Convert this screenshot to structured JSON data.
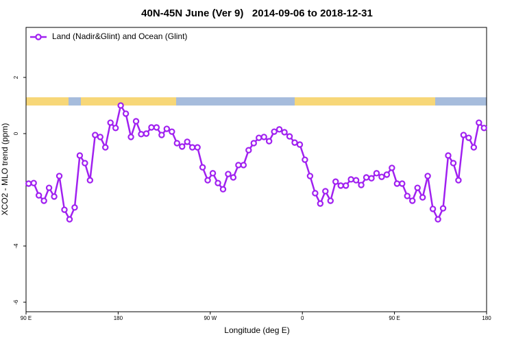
{
  "chart_data": {
    "type": "line",
    "title": "40N-45N June (Ver 9)   2014-09-06 to 2018-12-31",
    "x_label": "Longitude (deg E)",
    "y_label": "XCO2 - MLO trend (ppm)",
    "x": [
      92.5,
      97.5,
      102.5,
      107.5,
      112.5,
      117.5,
      122.5,
      127.5,
      132.5,
      137.5,
      142.5,
      147.5,
      152.5,
      157.5,
      162.5,
      167.5,
      172.5,
      177.5,
      182.5,
      187.5,
      192.5,
      197.5,
      202.5,
      207.5,
      212.5,
      217.5,
      222.5,
      227.5,
      232.5,
      237.5,
      242.5,
      247.5,
      252.5,
      257.5,
      262.5,
      267.5,
      272.5,
      277.5,
      282.5,
      287.5,
      292.5,
      297.5,
      302.5,
      307.5,
      312.5,
      317.5,
      322.5,
      327.5,
      332.5,
      337.5,
      342.5,
      347.5,
      352.5,
      357.5,
      362.5,
      367.5,
      372.5,
      377.5,
      382.5,
      387.5,
      392.5,
      397.5,
      402.5,
      407.5,
      412.5,
      417.5,
      422.5,
      427.5,
      432.5,
      437.5,
      442.5,
      447.5,
      452.5,
      457.5,
      462.5,
      467.5,
      472.5,
      477.5,
      482.5,
      487.5,
      492.5,
      497.5,
      502.5,
      507.5,
      512.5,
      517.5,
      522.5,
      527.5,
      532.5,
      537.5
    ],
    "series": [
      {
        "name": "Land (Nadir&Glint) and Ocean (Glint)",
        "color": "#a020f0",
        "values": [
          -1.78,
          -1.76,
          -2.2,
          -2.39,
          -1.93,
          -2.24,
          -1.51,
          -2.71,
          -3.05,
          -2.63,
          -0.78,
          -1.05,
          -1.66,
          -0.05,
          -0.12,
          -0.49,
          0.39,
          0.2,
          1.0,
          0.71,
          -0.12,
          0.44,
          -0.02,
          0,
          0.22,
          0.22,
          -0.05,
          0.17,
          0.07,
          -0.34,
          -0.46,
          -0.29,
          -0.49,
          -0.49,
          -1.2,
          -1.66,
          -1.41,
          -1.76,
          -1.98,
          -1.44,
          -1.56,
          -1.12,
          -1.12,
          -0.59,
          -0.34,
          -0.15,
          -0.12,
          -0.27,
          0.07,
          0.15,
          0.05,
          -0.1,
          -0.32,
          -0.39,
          -0.93,
          -1.51,
          -2.12,
          -2.49,
          -2.05,
          -2.39,
          -1.71,
          -1.85,
          -1.85,
          -1.63,
          -1.66,
          -1.83,
          -1.56,
          -1.59,
          -1.41,
          -1.54,
          -1.46,
          -1.22,
          -1.78,
          -1.78,
          -2.22,
          -2.39,
          -1.93,
          -2.27,
          -1.51,
          -2.68,
          -3.05,
          -2.66,
          -0.78,
          -1.05,
          -1.66,
          -0.05,
          -0.15,
          -0.49,
          0.39,
          0.2
        ]
      }
    ],
    "xlim": [
      90,
      540
    ],
    "xticks": [
      {
        "value": 90,
        "label": "90 E"
      },
      {
        "value": 180,
        "label": "180"
      },
      {
        "value": 270,
        "label": "90 W"
      },
      {
        "value": 360,
        "label": "0"
      },
      {
        "value": 450,
        "label": "90 E"
      },
      {
        "value": 540,
        "label": "180"
      }
    ],
    "ylim": [
      -6.34,
      3.78
    ],
    "yticks": [
      -6,
      -4,
      0,
      2
    ],
    "legend": "top-left"
  }
}
